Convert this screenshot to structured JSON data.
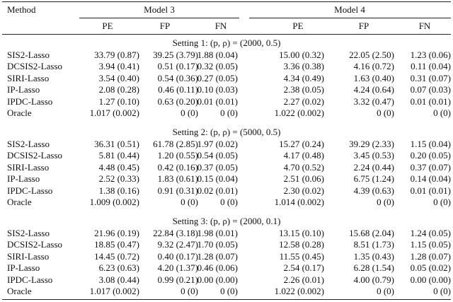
{
  "header": {
    "method": "Method",
    "groups": [
      "Model 3",
      "Model 4"
    ],
    "columns": [
      "PE",
      "FP",
      "FN",
      "PE",
      "FP",
      "FN"
    ]
  },
  "sections": [
    {
      "title": "Setting 1: (p, ρ) = (2000, 0.5)",
      "rows": [
        [
          "SIS2-Lasso",
          "33.79 (0.87)",
          "39.25 (3.79)",
          "1.88 (0.04)",
          "15.00 (0.32)",
          "22.05 (2.50)",
          "1.23 (0.06)"
        ],
        [
          "DCSIS2-Lasso",
          "3.94 (0.41)",
          "0.51 (0.17)",
          "0.32 (0.05)",
          "3.36 (0.38)",
          "4.16 (0.72)",
          "0.11 (0.04)"
        ],
        [
          "SIRI-Lasso",
          "3.54 (0.40)",
          "0.54 (0.36)",
          "0.27 (0.05)",
          "4.34 (0.49)",
          "1.63 (0.40)",
          "0.31 (0.07)"
        ],
        [
          "IP-Lasso",
          "2.08 (0.28)",
          "0.46 (0.11)",
          "0.10 (0.03)",
          "2.38 (0.05)",
          "4.24 (0.64)",
          "0.07 (0.03)"
        ],
        [
          "IPDC-Lasso",
          "1.27 (0.10)",
          "0.63 (0.20)",
          "0.01 (0.01)",
          "2.27 (0.02)",
          "3.32 (0.47)",
          "0.01 (0.01)"
        ],
        [
          "Oracle",
          "1.017 (0.002)",
          "0 (0)",
          "0 (0)",
          "1.022 (0.002)",
          "0 (0)",
          "0 (0)"
        ]
      ]
    },
    {
      "title": "Setting 2: (p, ρ) = (5000, 0.5)",
      "rows": [
        [
          "SIS2-Lasso",
          "36.31 (0.51)",
          "61.78 (2.85)",
          "1.97 (0.02)",
          "15.27 (0.24)",
          "39.29 (2.33)",
          "1.15 (0.04)"
        ],
        [
          "DCSIS2-Lasso",
          "5.81 (0.44)",
          "1.20 (0.55)",
          "0.54 (0.05)",
          "4.17 (0.48)",
          "3.45 (0.53)",
          "0.20 (0.05)"
        ],
        [
          "SIRI-Lasso",
          "4.48 (0.45)",
          "0.42 (0.16)",
          "0.37 (0.05)",
          "4.70 (0.52)",
          "2.24 (0.44)",
          "0.37 (0.07)"
        ],
        [
          "IP-Lasso",
          "2.52 (0.33)",
          "1.83 (0.61)",
          "0.15 (0.04)",
          "2.51 (0.06)",
          "6.75 (1.24)",
          "0.14 (0.04)"
        ],
        [
          "IPDC-Lasso",
          "1.38 (0.16)",
          "0.91 (0.31)",
          "0.02 (0.01)",
          "2.30 (0.02)",
          "4.39 (0.63)",
          "0.01 (0.01)"
        ],
        [
          "Oracle",
          "1.009 (0.002)",
          "0 (0)",
          "0 (0)",
          "1.014 (0.002)",
          "0 (0)",
          "0 (0)"
        ]
      ]
    },
    {
      "title": "Setting 3: (p, ρ) = (2000, 0.1)",
      "rows": [
        [
          "SIS2-Lasso",
          "21.96 (0.19)",
          "22.84 (3.18)",
          "1.98 (0.01)",
          "13.15 (0.10)",
          "15.68 (2.04)",
          "1.24 (0.05)"
        ],
        [
          "DCSIS2-Lasso",
          "18.85 (0.47)",
          "9.32 (2.47)",
          "1.70 (0.05)",
          "12.58 (0.28)",
          "8.51 (1.73)",
          "1.15 (0.05)"
        ],
        [
          "SIRI-Lasso",
          "14.45 (0.72)",
          "0.40 (0.17)",
          "1.28 (0.07)",
          "11.55 (0.45)",
          "1.35 (0.43)",
          "1.28 (0.07)"
        ],
        [
          "IP-Lasso",
          "6.23 (0.63)",
          "4.20 (1.37)",
          "0.46 (0.06)",
          "2.54 (0.17)",
          "6.28 (1.54)",
          "0.05 (0.02)"
        ],
        [
          "IPDC-Lasso",
          "3.08 (0.44)",
          "0.99 (0.21)",
          "0.00 (0.00)",
          "2.26 (0.01)",
          "4.00 (0.79)",
          "0.00 (0.00)"
        ],
        [
          "Oracle",
          "1.017 (0.002)",
          "0 (0)",
          "0 (0)",
          "1.022 (0.002)",
          "0 (0)",
          "0 (0)"
        ]
      ]
    }
  ]
}
